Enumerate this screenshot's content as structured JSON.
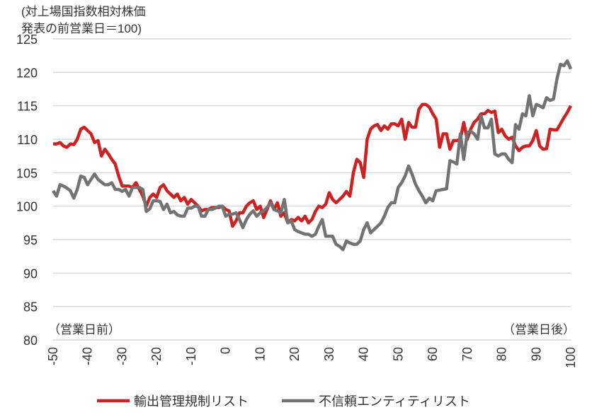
{
  "chart_data": {
    "type": "line",
    "title": "",
    "ylabel_lines": [
      "(対上場国指数相対株価",
      "発表の前営業日＝100)"
    ],
    "annotations": {
      "before": "（営業日前）",
      "after": "（営業日後）"
    },
    "xlim": [
      -50,
      100
    ],
    "ylim": [
      80,
      125
    ],
    "xticks": [
      -50,
      -40,
      -30,
      -20,
      -10,
      0,
      10,
      20,
      30,
      40,
      50,
      60,
      70,
      80,
      90,
      100
    ],
    "yticks": [
      80,
      85,
      90,
      95,
      100,
      105,
      110,
      115,
      120,
      125
    ],
    "grid": true,
    "legend_position": "bottom",
    "x_start": -50,
    "series": [
      {
        "name": "輸出管理規制リスト",
        "color": "#cc2222",
        "values": [
          109.3,
          109.3,
          109.5,
          109,
          108.8,
          109.3,
          109.2,
          110,
          111.5,
          111.8,
          111.3,
          110.8,
          109.5,
          109.8,
          107.5,
          108.5,
          107.8,
          107,
          106.3,
          104.5,
          103,
          103,
          103,
          102.8,
          103.5,
          102.5,
          101.5,
          100,
          101.3,
          101.8,
          101.3,
          102.8,
          103.2,
          102.3,
          101.8,
          101.3,
          101.8,
          100.8,
          101.3,
          100.3,
          101,
          100.5,
          100,
          99.3,
          99.5,
          99.5,
          99.8,
          99.8,
          99.8,
          100,
          99.5,
          99.3,
          97,
          97.8,
          99,
          99,
          100,
          100.5,
          100.8,
          99.5,
          100,
          98.3,
          99.5,
          100.8,
          99.5,
          100.5,
          98.5,
          99,
          97.5,
          98,
          97.8,
          98.3,
          97.8,
          98.5,
          97.5,
          98,
          99.2,
          100,
          99.8,
          100.3,
          102,
          101,
          100.5,
          101,
          101.5,
          102.2,
          101.5,
          105,
          107,
          106.5,
          104.3,
          110,
          111.5,
          112,
          112.2,
          111.3,
          112,
          111.5,
          112.3,
          112.3,
          112,
          113,
          110,
          112.5,
          111.8,
          111.8,
          114.5,
          115.2,
          115.2,
          114.8,
          113.8,
          113,
          108.8,
          110.8,
          110.8,
          108.5,
          109.8,
          109.8,
          110,
          112.5,
          110,
          111.5,
          112.5,
          113,
          113.8,
          113.8,
          114.3,
          114,
          114.2,
          111,
          111.5,
          110.5,
          110,
          110.3,
          109,
          108.3,
          108.8,
          109,
          109,
          109.8,
          111.3,
          109,
          108.5,
          108.6,
          111.5,
          111.4,
          111.4,
          112.3,
          113.2,
          114,
          115
        ]
      },
      {
        "name": "不信頼エンティティリスト",
        "color": "#737373",
        "values": [
          102.3,
          101.5,
          103.2,
          103,
          102.7,
          102.3,
          101.2,
          102.5,
          104.5,
          104.3,
          103.2,
          104,
          104.8,
          104,
          103.6,
          103.2,
          103.2,
          103.5,
          102.5,
          102.5,
          102.2,
          102.5,
          101.5,
          102.8,
          102.8,
          102.8,
          102.5,
          99.2,
          99.6,
          100.8,
          100.8,
          100.7,
          99.5,
          100.3,
          99,
          99.2,
          98.7,
          98.5,
          98.5,
          99.7,
          99.7,
          100,
          100,
          98.5,
          98.5,
          99.5,
          99.5,
          99.7,
          100,
          100,
          98.5,
          98.8,
          98.8,
          99,
          98,
          96.8,
          98,
          98.8,
          99.3,
          98.5,
          99,
          99.3,
          99.8,
          100.5,
          99.5,
          99.3,
          99,
          101,
          97.5,
          97.8,
          96.5,
          96.2,
          96,
          95.8,
          95.8,
          95.5,
          95.8,
          97,
          98,
          95.5,
          95.5,
          95.5,
          94.3,
          94,
          93.5,
          94.8,
          94.5,
          94.3,
          94.3,
          94.8,
          96.5,
          97.5,
          96,
          96.5,
          97,
          97.5,
          98.5,
          99.8,
          100.5,
          100.5,
          102.8,
          103.5,
          104.5,
          106,
          104.8,
          103.3,
          102.3,
          101.5,
          100.5,
          101.2,
          100.8,
          102.3,
          102.4,
          102.5,
          102.6,
          106.8,
          106.6,
          106.3,
          110.8,
          107,
          111,
          111.2,
          110.8,
          110,
          113.5,
          111.7,
          111.7,
          113,
          107.8,
          107.5,
          107.8,
          107.8,
          107,
          106.5,
          112.2,
          111.5,
          113.8,
          113.5,
          116.5,
          113.5,
          115.2,
          115,
          114.7,
          116.2,
          115.8,
          116,
          119,
          121.2,
          121,
          121.7,
          120.5
        ]
      }
    ]
  }
}
